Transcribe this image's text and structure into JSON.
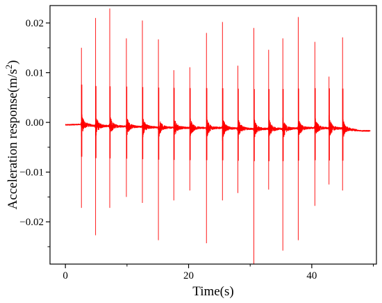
{
  "chart_data": {
    "type": "line",
    "title": "",
    "xlabel": "Time(s)",
    "ylabel_main": "Acceleration response(m/s",
    "ylabel_sup": "2",
    "ylabel_close": ")",
    "xlim": [
      -2.5,
      50.5
    ],
    "ylim": [
      -0.0285,
      0.0235
    ],
    "x_ticks": [
      0,
      20,
      40
    ],
    "x_tick_labels": [
      "0",
      "20",
      "40"
    ],
    "x_minor_ticks": [
      10,
      30,
      50
    ],
    "y_ticks": [
      0.02,
      0.01,
      0.0,
      -0.01,
      -0.02
    ],
    "y_tick_labels": [
      "0.02",
      "0.01",
      "0.00",
      "−0.01",
      "−0.02"
    ],
    "y_minor_ticks": [
      0.015,
      0.005,
      -0.005,
      -0.015,
      -0.025
    ],
    "grid": false,
    "line_color": "#ff0000",
    "series": [
      {
        "baseline": [
          [
            0,
            -0.0005
          ],
          [
            2.6,
            -0.0004
          ],
          [
            5,
            -0.0007
          ],
          [
            10,
            -0.0008
          ],
          [
            15,
            -0.001
          ],
          [
            20,
            -0.0011
          ],
          [
            25,
            -0.0011
          ],
          [
            30,
            -0.0013
          ],
          [
            35,
            -0.0013
          ],
          [
            40,
            -0.0011
          ],
          [
            45,
            -0.0012
          ],
          [
            48,
            -0.0017
          ],
          [
            49.5,
            -0.0017
          ]
        ],
        "impacts": [
          {
            "t": 2.6,
            "max": 0.015,
            "min": -0.0172
          },
          {
            "t": 4.9,
            "max": 0.021,
            "min": -0.0227
          },
          {
            "t": 7.2,
            "max": 0.0229,
            "min": -0.0172
          },
          {
            "t": 9.9,
            "max": 0.0169,
            "min": -0.015
          },
          {
            "t": 12.5,
            "max": 0.0205,
            "min": -0.0162
          },
          {
            "t": 15.1,
            "max": 0.0167,
            "min": -0.0237
          },
          {
            "t": 17.6,
            "max": 0.0105,
            "min": -0.0157
          },
          {
            "t": 20.2,
            "max": 0.0111,
            "min": -0.0137
          },
          {
            "t": 22.9,
            "max": 0.018,
            "min": -0.0243
          },
          {
            "t": 25.5,
            "max": 0.0202,
            "min": -0.0157
          },
          {
            "t": 28.0,
            "max": 0.0114,
            "min": -0.0142
          },
          {
            "t": 30.6,
            "max": 0.019,
            "min": -0.0285
          },
          {
            "t": 33.0,
            "max": 0.0146,
            "min": -0.0135
          },
          {
            "t": 35.3,
            "max": 0.0169,
            "min": -0.0258
          },
          {
            "t": 37.8,
            "max": 0.0212,
            "min": -0.0237
          },
          {
            "t": 40.5,
            "max": 0.0162,
            "min": -0.0168
          },
          {
            "t": 42.8,
            "max": 0.0092,
            "min": -0.0125
          },
          {
            "t": 45.0,
            "max": 0.0171,
            "min": -0.0137
          }
        ]
      }
    ]
  }
}
